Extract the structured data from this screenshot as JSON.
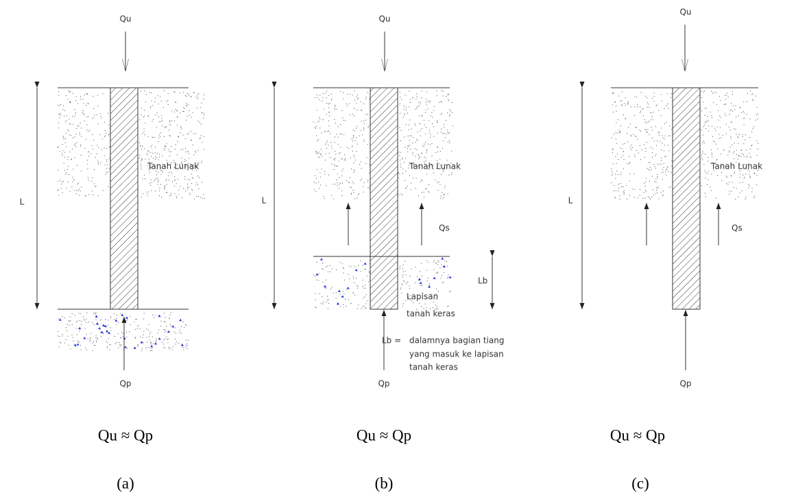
{
  "panels": [
    {
      "top_load": "Qu",
      "length": "L",
      "soil": "Tanah Lunak",
      "tip_load": "Qp",
      "equation": "Qu ≈ Qp",
      "caption": "(a)"
    },
    {
      "top_load": "Qu",
      "length": "L",
      "soil": "Tanah Lunak",
      "shaft_load": "Qs",
      "embed": "Lb",
      "hard_layer": [
        "Lapisan",
        "tanah keras"
      ],
      "note": {
        "term": "Lb =",
        "lines": [
          "dalamnya bagian tiang",
          "yang masuk ke lapisan",
          "tanah keras"
        ]
      },
      "tip_load": "Qp",
      "equation": "Qu ≈ Qp",
      "caption": "(b)"
    },
    {
      "top_load": "Qu",
      "length": "L",
      "soil": "Tanah Lunak",
      "shaft_load": "Qs",
      "tip_load": "Qp",
      "equation": "Qu ≈ Qp",
      "caption": "(c)"
    }
  ]
}
